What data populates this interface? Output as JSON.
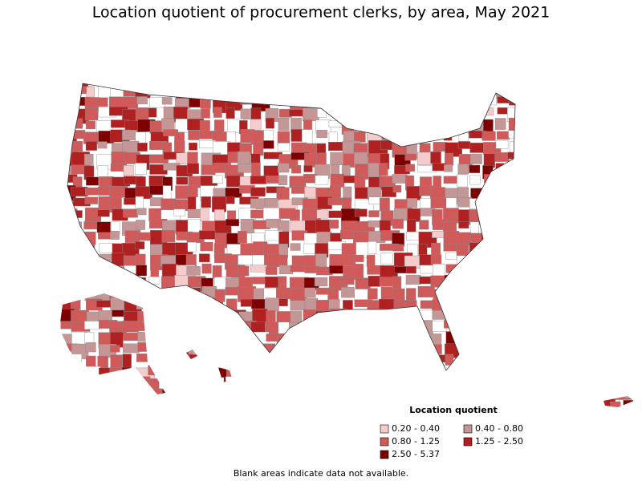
{
  "title": "Location quotient of procurement clerks, by area, May 2021",
  "legend": {
    "title": "Location quotient",
    "items": [
      {
        "label": "0.20 - 0.40",
        "color": "#f5cccc"
      },
      {
        "label": "0.40 - 0.80",
        "color": "#c49696"
      },
      {
        "label": "0.80 - 1.25",
        "color": "#d05a5a"
      },
      {
        "label": "1.25 - 2.50",
        "color": "#b02020"
      },
      {
        "label": "2.50 - 5.37",
        "color": "#7f0000"
      }
    ]
  },
  "footnote": "Blank areas indicate data not available."
}
